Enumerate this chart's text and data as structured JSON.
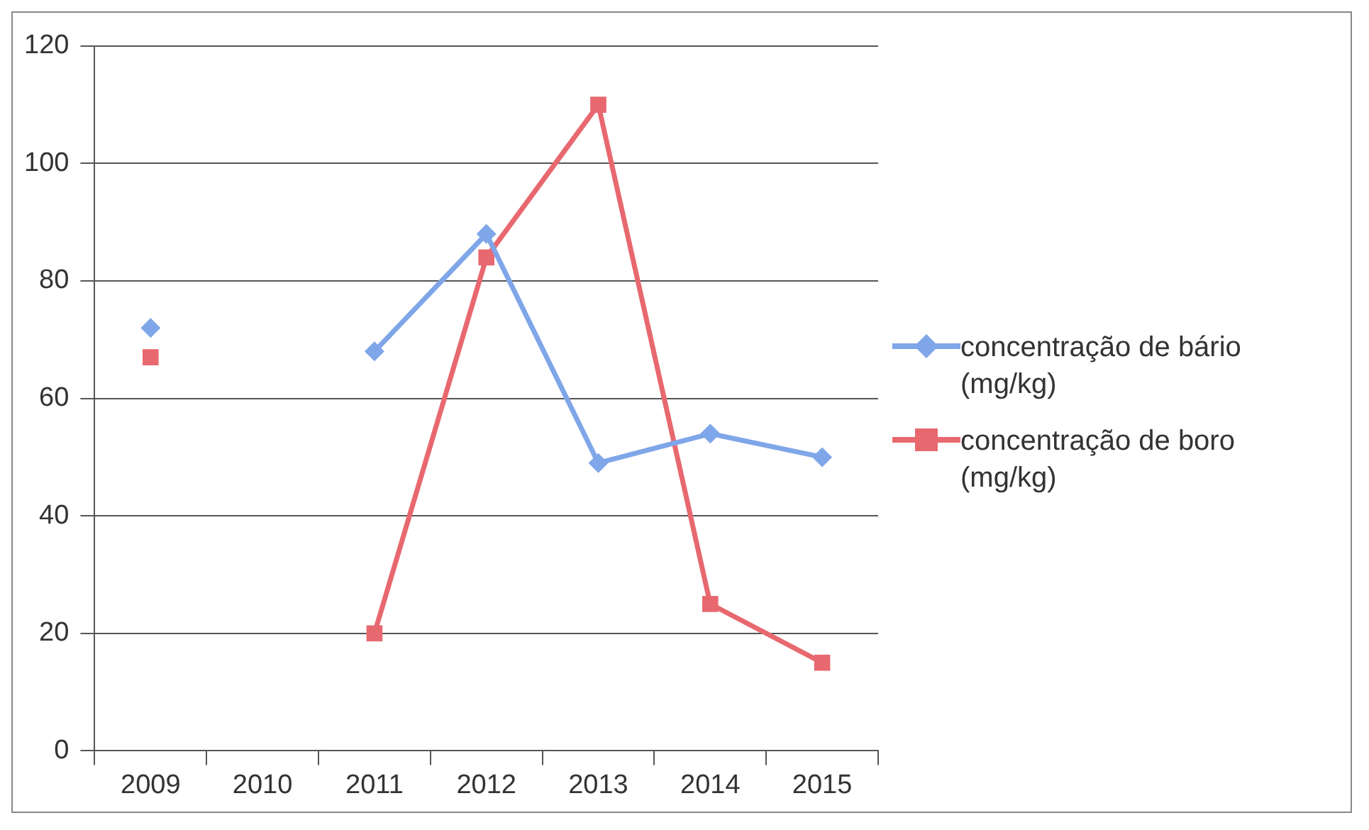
{
  "chart_data": {
    "type": "line",
    "categories": [
      "2009",
      "2010",
      "2011",
      "2012",
      "2013",
      "2014",
      "2015"
    ],
    "series": [
      {
        "name": "concentração de bário (mg/kg)",
        "color": "#7fa6e8",
        "marker": "diamond",
        "values": [
          72,
          null,
          68,
          88,
          49,
          54,
          50
        ]
      },
      {
        "name": "concentração de boro (mg/kg)",
        "color": "#e8686f",
        "marker": "square",
        "values": [
          67,
          null,
          20,
          84,
          110,
          25,
          15
        ]
      }
    ],
    "ylim": [
      0,
      120
    ],
    "yticks": [
      0,
      20,
      40,
      60,
      80,
      100,
      120
    ],
    "grid": "y",
    "legend": "right"
  }
}
